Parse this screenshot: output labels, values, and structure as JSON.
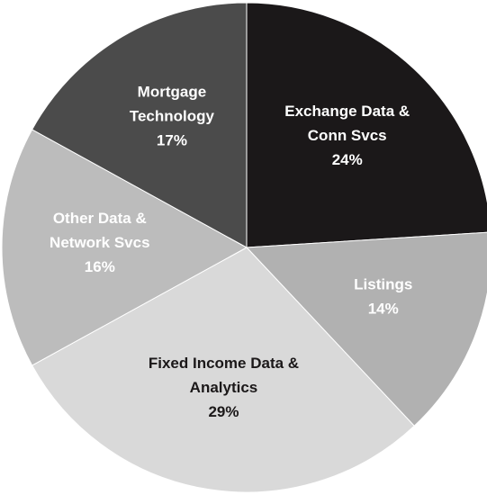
{
  "chart_data": {
    "type": "pie",
    "categories": [
      "Exchange Data &\nConn Svcs",
      "Listings",
      "Fixed Income Data &\nAnalytics",
      "Other Data &\nNetwork Svcs",
      "Mortgage\nTechnology"
    ],
    "values": [
      24,
      14,
      29,
      16,
      17
    ],
    "value_labels": [
      "24%",
      "14%",
      "29%",
      "16%",
      "17%"
    ],
    "colors": [
      "#1b1819",
      "#b1b1b1",
      "#d9d9d9",
      "#bcbcbc",
      "#4b4b4b"
    ],
    "label_colors": [
      "#ffffff",
      "#ffffff",
      "#1b1819",
      "#ffffff",
      "#ffffff"
    ]
  }
}
